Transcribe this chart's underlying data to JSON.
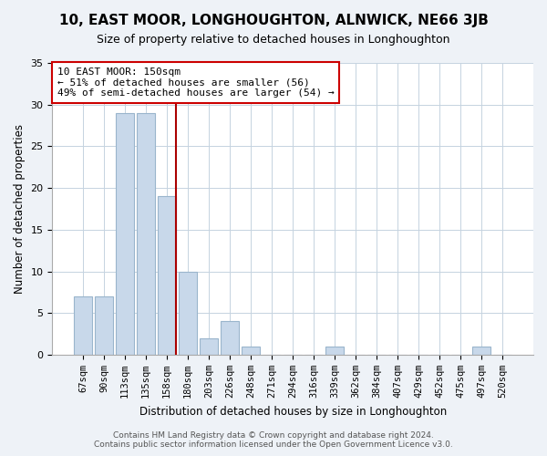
{
  "title": "10, EAST MOOR, LONGHOUGHTON, ALNWICK, NE66 3JB",
  "subtitle": "Size of property relative to detached houses in Longhoughton",
  "xlabel": "Distribution of detached houses by size in Longhoughton",
  "ylabel": "Number of detached properties",
  "categories": [
    "67sqm",
    "90sqm",
    "113sqm",
    "135sqm",
    "158sqm",
    "180sqm",
    "203sqm",
    "226sqm",
    "248sqm",
    "271sqm",
    "294sqm",
    "316sqm",
    "339sqm",
    "362sqm",
    "384sqm",
    "407sqm",
    "429sqm",
    "452sqm",
    "475sqm",
    "497sqm",
    "520sqm"
  ],
  "values": [
    7,
    7,
    29,
    29,
    19,
    10,
    2,
    4,
    1,
    0,
    0,
    0,
    1,
    0,
    0,
    0,
    0,
    0,
    0,
    1,
    0
  ],
  "bar_color": "#c8d8ea",
  "bar_edge_color": "#9ab5cc",
  "vline_index": 4,
  "vline_color": "#aa0000",
  "annotation_line1": "10 EAST MOOR: 150sqm",
  "annotation_line2": "← 51% of detached houses are smaller (56)",
  "annotation_line3": "49% of semi-detached houses are larger (54) →",
  "annotation_box_color": "#ffffff",
  "annotation_box_edge": "#cc0000",
  "ylim": [
    0,
    35
  ],
  "yticks": [
    0,
    5,
    10,
    15,
    20,
    25,
    30,
    35
  ],
  "footer1": "Contains HM Land Registry data © Crown copyright and database right 2024.",
  "footer2": "Contains public sector information licensed under the Open Government Licence v3.0.",
  "bg_color": "#eef2f7",
  "plot_bg_color": "#ffffff",
  "grid_color": "#c5d3e0"
}
